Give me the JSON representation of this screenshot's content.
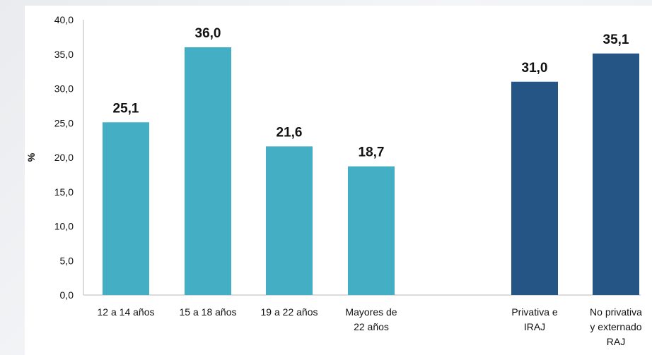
{
  "chart_data": {
    "type": "bar",
    "ylabel": "%",
    "ylim": [
      0,
      40
    ],
    "yticks": [
      "0,0",
      "5,0",
      "10,0",
      "15,0",
      "20,0",
      "25,0",
      "30,0",
      "35,0",
      "40,0"
    ],
    "groups": [
      {
        "color": "#44aec4",
        "bars": [
          {
            "label": [
              "12 a 14 años"
            ],
            "value": 25.1,
            "value_label": "25,1"
          },
          {
            "label": [
              "15 a 18 años"
            ],
            "value": 36.0,
            "value_label": "36,0"
          },
          {
            "label": [
              "19 a 22 años"
            ],
            "value": 21.6,
            "value_label": "21,6"
          },
          {
            "label": [
              "Mayores de",
              "22 años"
            ],
            "value": 18.7,
            "value_label": "18,7"
          }
        ]
      },
      {
        "color": "#245585",
        "bars": [
          {
            "label": [
              "Privativa e",
              "IRAJ"
            ],
            "value": 31.0,
            "value_label": "31,0"
          },
          {
            "label": [
              "No privativa",
              "y externado",
              "RAJ"
            ],
            "value": 35.1,
            "value_label": "35,1"
          }
        ]
      }
    ]
  }
}
